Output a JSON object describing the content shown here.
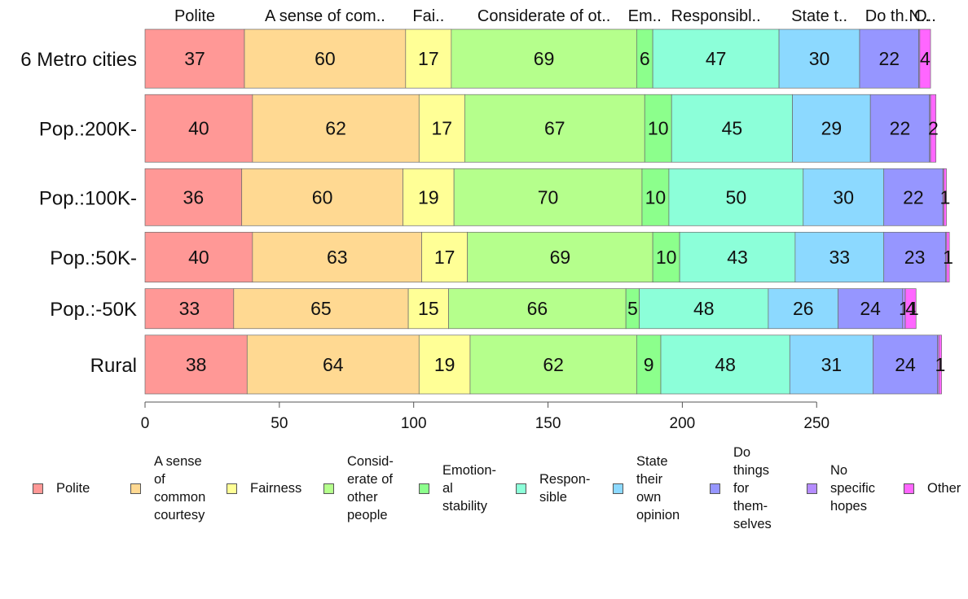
{
  "chart_data": {
    "type": "bar",
    "orientation": "horizontal",
    "stacked": true,
    "categories": [
      "6 Metro cities",
      "Pop.:200K-",
      "Pop.:100K-",
      "Pop.:50K-",
      "Pop.:-50K",
      "Rural"
    ],
    "category_weights": [
      1.0,
      1.15,
      0.97,
      0.85,
      0.68,
      1.0
    ],
    "series": [
      {
        "name": "Polite",
        "top_label": "Polite",
        "legend_label": "Polite",
        "color": "#ff9896",
        "values": [
          37,
          40,
          36,
          40,
          33,
          38
        ]
      },
      {
        "name": "A sense of common courtesy",
        "top_label": "A sense of com..",
        "legend_label": "A sense\nof\ncommon\ncourtesy",
        "color": "#ffd992",
        "values": [
          60,
          62,
          60,
          63,
          65,
          64
        ]
      },
      {
        "name": "Fairness",
        "top_label": "Fai..",
        "legend_label": "Fairness",
        "color": "#ffff96",
        "values": [
          17,
          17,
          19,
          17,
          15,
          19
        ]
      },
      {
        "name": "Considerate of other people",
        "top_label": "Considerate of ot..",
        "legend_label": "Consid-\nerate of\nother\npeople",
        "color": "#b5ff8c",
        "values": [
          69,
          67,
          70,
          69,
          66,
          62
        ]
      },
      {
        "name": "Emotional stability",
        "top_label": "Em..",
        "legend_label": "Emotion-\nal\nstability",
        "color": "#8cff8c",
        "values": [
          6,
          10,
          10,
          10,
          5,
          9
        ]
      },
      {
        "name": "Responsible",
        "top_label": "Responsibl..",
        "legend_label": "Respon-\nsible",
        "color": "#8cffd9",
        "values": [
          47,
          45,
          50,
          43,
          48,
          48
        ]
      },
      {
        "name": "State their own opinion",
        "top_label": "State t..",
        "legend_label": "State\ntheir\nown\nopinion",
        "color": "#8cd9ff",
        "values": [
          30,
          29,
          30,
          33,
          26,
          31
        ]
      },
      {
        "name": "Do things for themselves",
        "top_label": "Do th..",
        "legend_label": "Do\nthings\nfor\nthem-\nselves",
        "color": "#9696ff",
        "values": [
          22,
          22,
          22,
          23,
          24,
          24
        ]
      },
      {
        "name": "No specific hopes",
        "top_label": "N..",
        "legend_label": "No\nspecific\nhopes",
        "color": "#b58cff",
        "values": [
          0.4,
          0.4,
          0.3,
          0.4,
          1,
          0.5
        ]
      },
      {
        "name": "Other",
        "top_label": "O..",
        "legend_label": "Other",
        "color": "#ff66ff",
        "values": [
          4,
          2,
          1,
          1,
          4,
          1
        ]
      }
    ],
    "bar_labels": [
      [
        "37",
        "60",
        "17",
        "69",
        "6",
        "47",
        "30",
        "22",
        "",
        "4"
      ],
      [
        "40",
        "62",
        "17",
        "67",
        "10",
        "45",
        "29",
        "22",
        "",
        "2"
      ],
      [
        "36",
        "60",
        "19",
        "70",
        "10",
        "50",
        "30",
        "22",
        "",
        "1"
      ],
      [
        "40",
        "63",
        "17",
        "69",
        "10",
        "43",
        "33",
        "23",
        "",
        "1"
      ],
      [
        "33",
        "65",
        "15",
        "66",
        "5",
        "48",
        "26",
        "24",
        "1",
        "4"
      ],
      [
        "38",
        "64",
        "19",
        "62",
        "9",
        "48",
        "31",
        "24",
        "",
        "1"
      ]
    ],
    "extra_labels": [
      {
        "row": 4,
        "series": 9,
        "text": "1"
      }
    ],
    "xlim": [
      0,
      300
    ],
    "xticks": [
      0,
      50,
      100,
      150,
      200,
      250
    ],
    "xlabel": "",
    "ylabel": "",
    "title": "",
    "legend_position": "bottom",
    "grid": false
  }
}
